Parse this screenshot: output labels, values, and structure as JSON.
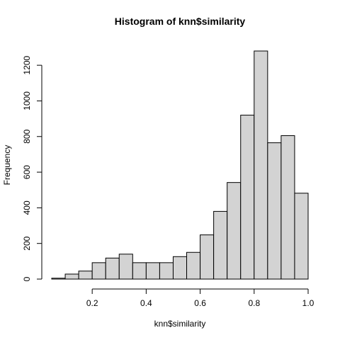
{
  "chart_data": {
    "type": "bar",
    "title": "Histogram of knn$similarity",
    "xlabel": "knn$similarity",
    "ylabel": "Frequency",
    "xlim": [
      0.05,
      1.0
    ],
    "ylim": [
      0,
      1280
    ],
    "x_ticks": [
      "0.2",
      "0.4",
      "0.6",
      "0.8",
      "1.0"
    ],
    "y_ticks": [
      "0",
      "200",
      "400",
      "600",
      "800",
      "1000",
      "1200"
    ],
    "bin_edges": [
      0.05,
      0.1,
      0.15,
      0.2,
      0.25,
      0.3,
      0.35,
      0.4,
      0.45,
      0.5,
      0.55,
      0.6,
      0.65,
      0.7,
      0.75,
      0.8,
      0.85,
      0.9,
      0.95,
      1.0
    ],
    "values": [
      5,
      28,
      45,
      92,
      118,
      140,
      92,
      92,
      92,
      126,
      150,
      248,
      380,
      542,
      920,
      1280,
      765,
      805,
      482
    ],
    "bar_color": "#d3d3d3",
    "grid": false,
    "legend": "none"
  }
}
